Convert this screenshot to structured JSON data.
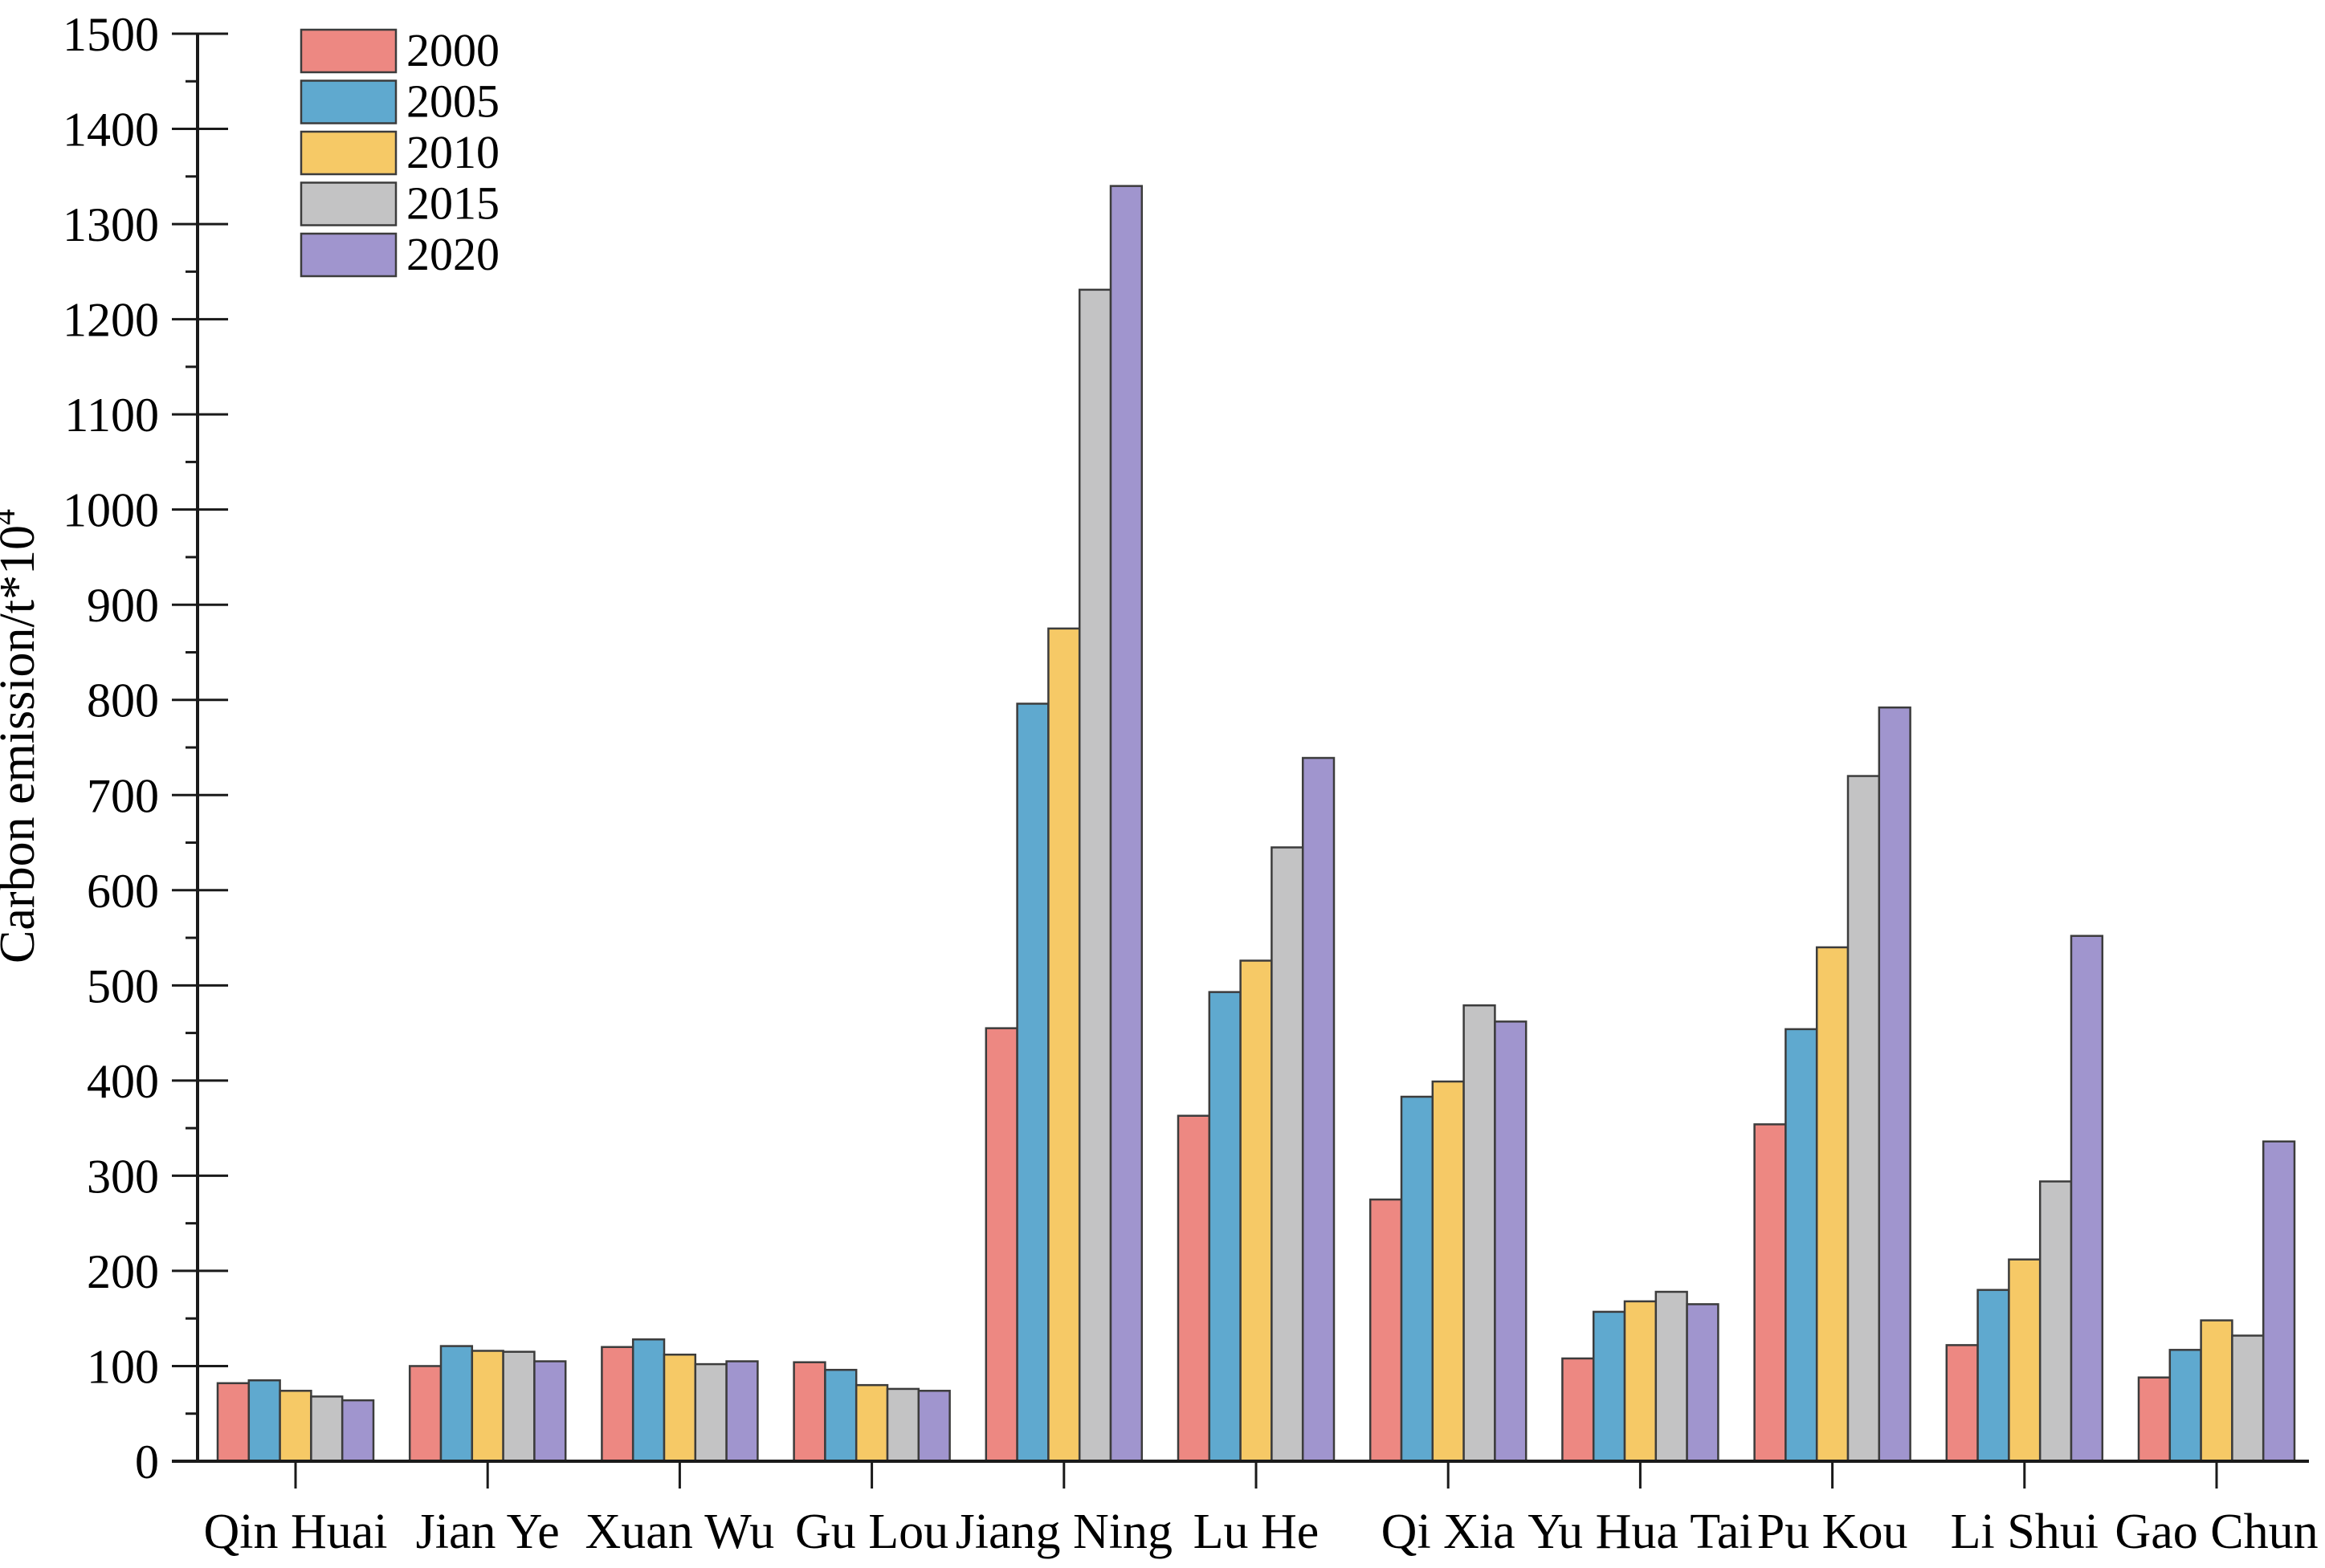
{
  "figure": {
    "background": "#ffffff"
  },
  "chart_data": {
    "type": "bar",
    "title": "",
    "ylabel": "Carbon emission/t*10",
    "ylabel_exponent": "4",
    "xlabel": "",
    "categories": [
      "Qin Huai",
      "Jian Ye",
      "Xuan Wu",
      "Gu Lou",
      "Jiang Ning",
      "Lu He",
      "Qi Xia",
      "Yu Hua Tai",
      "Pu Kou",
      "Li Shui",
      "Gao Chun"
    ],
    "series": [
      {
        "name": "2000",
        "color": "#ED8882",
        "values": [
          82,
          100,
          120,
          104,
          455,
          363,
          275,
          108,
          354,
          122,
          88
        ]
      },
      {
        "name": "2005",
        "color": "#5FA9CF",
        "values": [
          85,
          121,
          128,
          96,
          796,
          493,
          383,
          157,
          454,
          180,
          117
        ]
      },
      {
        "name": "2010",
        "color": "#F6C966",
        "values": [
          74,
          116,
          112,
          80,
          875,
          526,
          399,
          168,
          540,
          212,
          148
        ]
      },
      {
        "name": "2015",
        "color": "#C3C3C4",
        "values": [
          68,
          115,
          102,
          76,
          1231,
          645,
          479,
          178,
          720,
          294,
          132
        ]
      },
      {
        "name": "2020",
        "color": "#A095CE",
        "values": [
          64,
          105,
          105,
          74,
          1340,
          739,
          462,
          165,
          792,
          552,
          336
        ]
      }
    ],
    "ylim": [
      0,
      1500
    ],
    "ytick_step": 100,
    "yminor_step": 50,
    "ytick_labels": [
      "0",
      "100",
      "200",
      "300",
      "400",
      "500",
      "600",
      "700",
      "800",
      "900",
      "1000",
      "1100",
      "1200",
      "1300",
      "1400",
      "1500"
    ],
    "grid": false,
    "legend_position": "top-left",
    "styles": {
      "bar_border_color": "#3C3C3C",
      "axis_color": "#1A1A1A",
      "text_color": "#000000"
    }
  }
}
